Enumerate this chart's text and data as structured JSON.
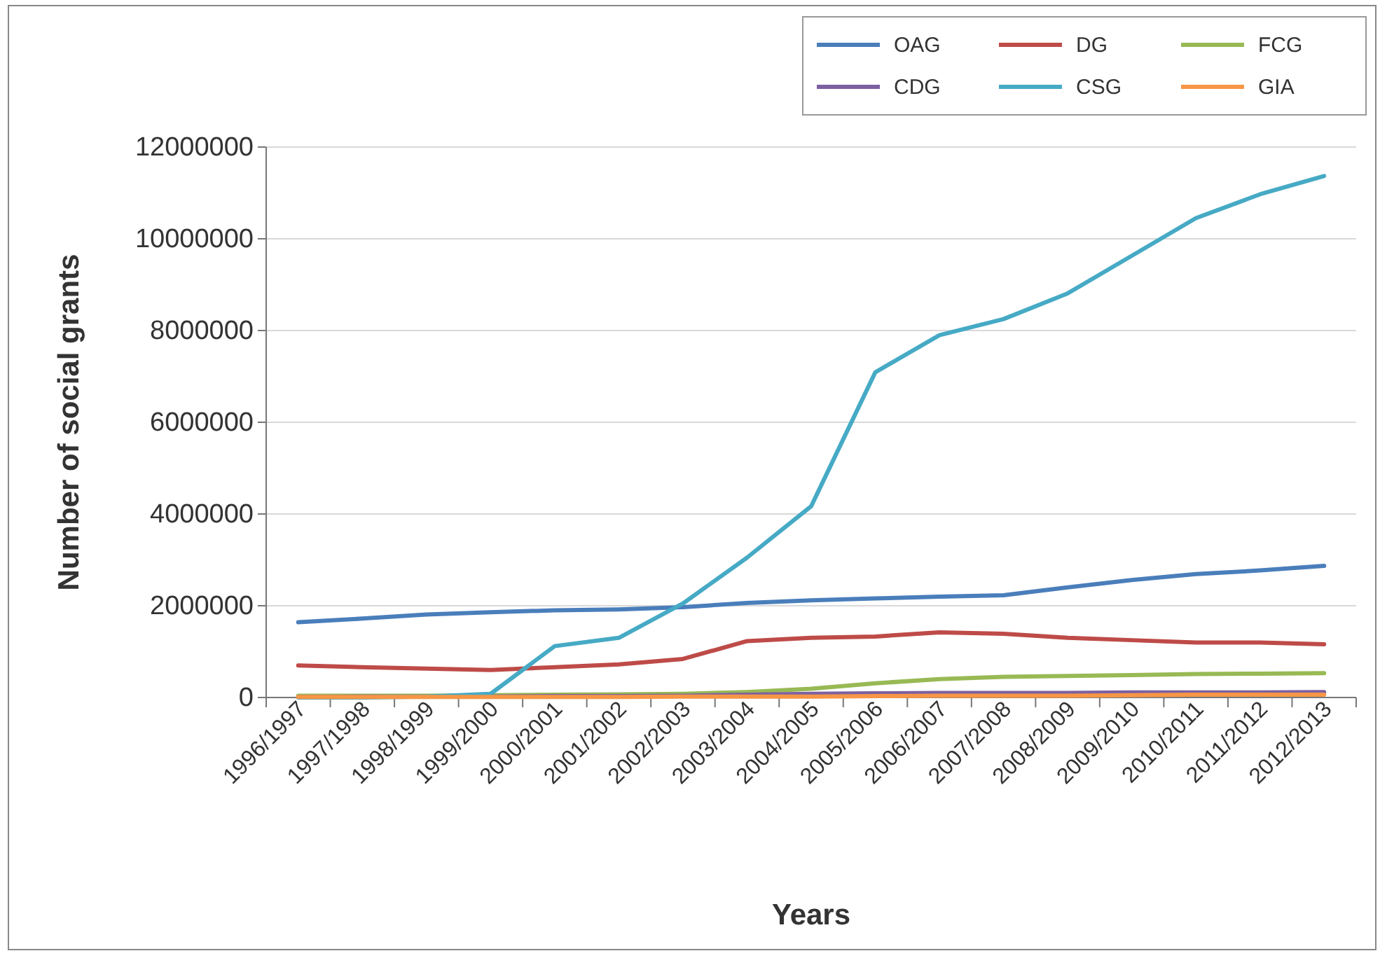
{
  "chart_data": {
    "type": "line",
    "xlabel": "Years",
    "ylabel": "Number of social grants",
    "categories": [
      "1996/1997",
      "1997/1998",
      "1998/1999",
      "1999/2000",
      "2000/2001",
      "2001/2002",
      "2002/2003",
      "2003/2004",
      "2004/2005",
      "2005/2006",
      "2006/2007",
      "2007/2008",
      "2008/2009",
      "2009/2010",
      "2010/2011",
      "2011/2012",
      "2012/2013"
    ],
    "series": [
      {
        "name": "OAG",
        "color": "#4a7ebb",
        "values": [
          1640000,
          1720000,
          1810000,
          1860000,
          1900000,
          1920000,
          1970000,
          2060000,
          2120000,
          2160000,
          2200000,
          2230000,
          2400000,
          2560000,
          2690000,
          2770000,
          2870000
        ]
      },
      {
        "name": "DG",
        "color": "#be4b48",
        "values": [
          700000,
          660000,
          630000,
          600000,
          660000,
          720000,
          840000,
          1230000,
          1300000,
          1330000,
          1420000,
          1390000,
          1300000,
          1250000,
          1200000,
          1200000,
          1160000
        ]
      },
      {
        "name": "FCG",
        "color": "#98b954",
        "values": [
          40000,
          40000,
          40000,
          50000,
          60000,
          70000,
          80000,
          120000,
          190000,
          310000,
          400000,
          450000,
          470000,
          490000,
          510000,
          520000,
          530000
        ]
      },
      {
        "name": "CDG",
        "color": "#7d60a0",
        "values": [
          10000,
          20000,
          20000,
          20000,
          30000,
          30000,
          40000,
          60000,
          80000,
          90000,
          100000,
          100000,
          100000,
          110000,
          110000,
          110000,
          120000
        ]
      },
      {
        "name": "CSG",
        "color": "#46aac5",
        "values": [
          0,
          0,
          20000,
          80000,
          1120000,
          1300000,
          2050000,
          3050000,
          4170000,
          7090000,
          7900000,
          8250000,
          8810000,
          9630000,
          10450000,
          10970000,
          11370000
        ]
      },
      {
        "name": "GIA",
        "color": "#f79646",
        "values": [
          10000,
          10000,
          10000,
          10000,
          10000,
          10000,
          20000,
          20000,
          20000,
          30000,
          40000,
          40000,
          40000,
          50000,
          60000,
          60000,
          60000
        ]
      }
    ],
    "ylim": [
      0,
      12000000
    ],
    "yticks": [
      0,
      2000000,
      4000000,
      6000000,
      8000000,
      10000000,
      12000000
    ],
    "grid": "y",
    "legend": "top right",
    "marker": "none",
    "line_style": "solid"
  }
}
